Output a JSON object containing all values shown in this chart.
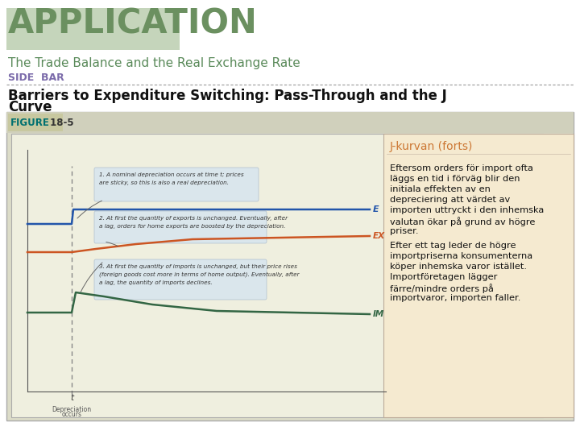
{
  "title": "APPLICATION",
  "subtitle": "The Trade Balance and the Real Exchange Rate",
  "sidebar_label": "SIDE  BAR",
  "section_title": "Barriers to Expenditure Switching: Pass-Through and the J",
  "section_title2": "Curve",
  "figure_label": "FIGURE",
  "figure_label2": " 18-5",
  "sidebar_title": "J-kurvan (forts)",
  "sidebar_text1": "Eftersom orders för import ofta\nläggs en tid i förväg blir den\ninitiala effekten av en\ndepreciering att värdet av\nimporten uttryckt i den inhemska\nvalutan ökar på grund av högre\npriser.",
  "sidebar_text2": "Efter ett tag leder de högre\nimportpriserna konsumenterna\nköper inhemska varor istället.\nImportföretagen lägger\nfärre/mindre orders på\nimportvaror, importen faller.",
  "ann1_line1": "1. A nominal depreciation occurs at time t; prices",
  "ann1_line2": "are sticky, so this is also a real depreciation.",
  "ann2_line1": "2. At first the quantity of exports is unchanged. Eventually, after",
  "ann2_line2": "a lag, orders for home exports are boosted by the depreciation.",
  "ann3_line1": "3. At first the quantity of imports is unchanged, but their price rises",
  "ann3_line2": "(foreign goods cost more in terms of home output). Eventually, after",
  "ann3_line3": "a lag, the quantity of imports declines.",
  "title_color": "#6b9060",
  "title_highlight_color": "#c5d5bb",
  "subtitle_color": "#5a8a5a",
  "sidebar_label_color": "#7b6baa",
  "sidebar_bg_color": "#f5ead0",
  "sidebar_title_color": "#cc7733",
  "section_title_color": "#111111",
  "figure_bg_color": "#dcdcc8",
  "figure_panel_bg": "#efefdf",
  "figure_label_color": "#007070",
  "figure_label2_color": "#333333",
  "fig_border_color": "#aaaaaa",
  "ann_bg_color": "#d8e5ee",
  "ann_border_color": "#aabbcc",
  "line_E_color": "#2255aa",
  "line_EX_color": "#cc5522",
  "line_IM_color": "#336644",
  "dotted_border_color": "#999999",
  "bg_color": "#ffffff",
  "depr_line_color": "#888888",
  "time_label_color": "#333333",
  "depr_text_color": "#555555"
}
